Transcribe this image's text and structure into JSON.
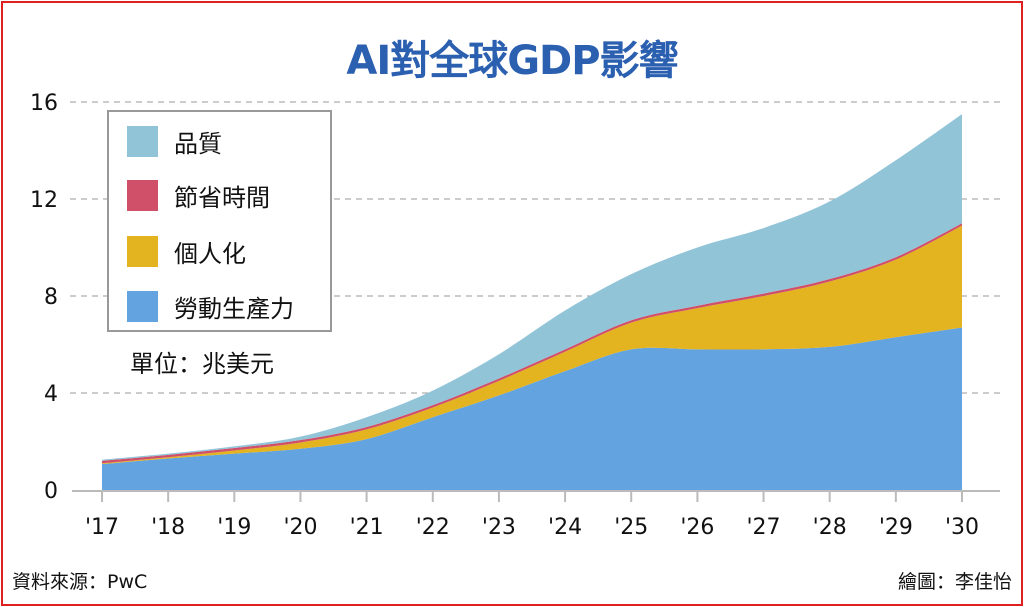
{
  "chart_data": {
    "type": "area",
    "stacked": true,
    "title": "AI對全球GDP影響",
    "unit_note": "單位：兆美元",
    "categories": [
      "'17",
      "'18",
      "'19",
      "'20",
      "'21",
      "'22",
      "'23",
      "'24",
      "'25",
      "'26",
      "'27",
      "'28",
      "'29",
      "'30"
    ],
    "ylim": [
      0,
      16
    ],
    "yticks": [
      "0",
      "4",
      "8",
      "12",
      "16"
    ],
    "grid": true,
    "legend_position": "top-left",
    "series": [
      {
        "name": "勞動生產力",
        "color": "#62a3e0",
        "values": [
          1.07,
          1.3,
          1.5,
          1.7,
          2.1,
          3.0,
          3.9,
          4.9,
          5.8,
          5.8,
          5.8,
          5.9,
          6.3,
          6.7
        ]
      },
      {
        "name": "個人化",
        "color": "#e3b420",
        "values": [
          0.03,
          0.05,
          0.13,
          0.26,
          0.4,
          0.4,
          0.6,
          0.8,
          1.1,
          1.7,
          2.2,
          2.7,
          3.2,
          4.2
        ]
      },
      {
        "name": "節省時間",
        "color": "#d0506a",
        "values": [
          0.1,
          0.1,
          0.1,
          0.1,
          0.1,
          0.1,
          0.1,
          0.1,
          0.1,
          0.1,
          0.1,
          0.1,
          0.1,
          0.1
        ]
      },
      {
        "name": "品質",
        "color": "#92c4d8",
        "values": [
          0.05,
          0.05,
          0.07,
          0.14,
          0.4,
          0.6,
          1.0,
          1.6,
          1.9,
          2.4,
          2.7,
          3.2,
          4.0,
          4.5
        ]
      }
    ]
  },
  "footer": {
    "source": "資料來源：PwC",
    "credit": "繪圖：李佳怡"
  }
}
